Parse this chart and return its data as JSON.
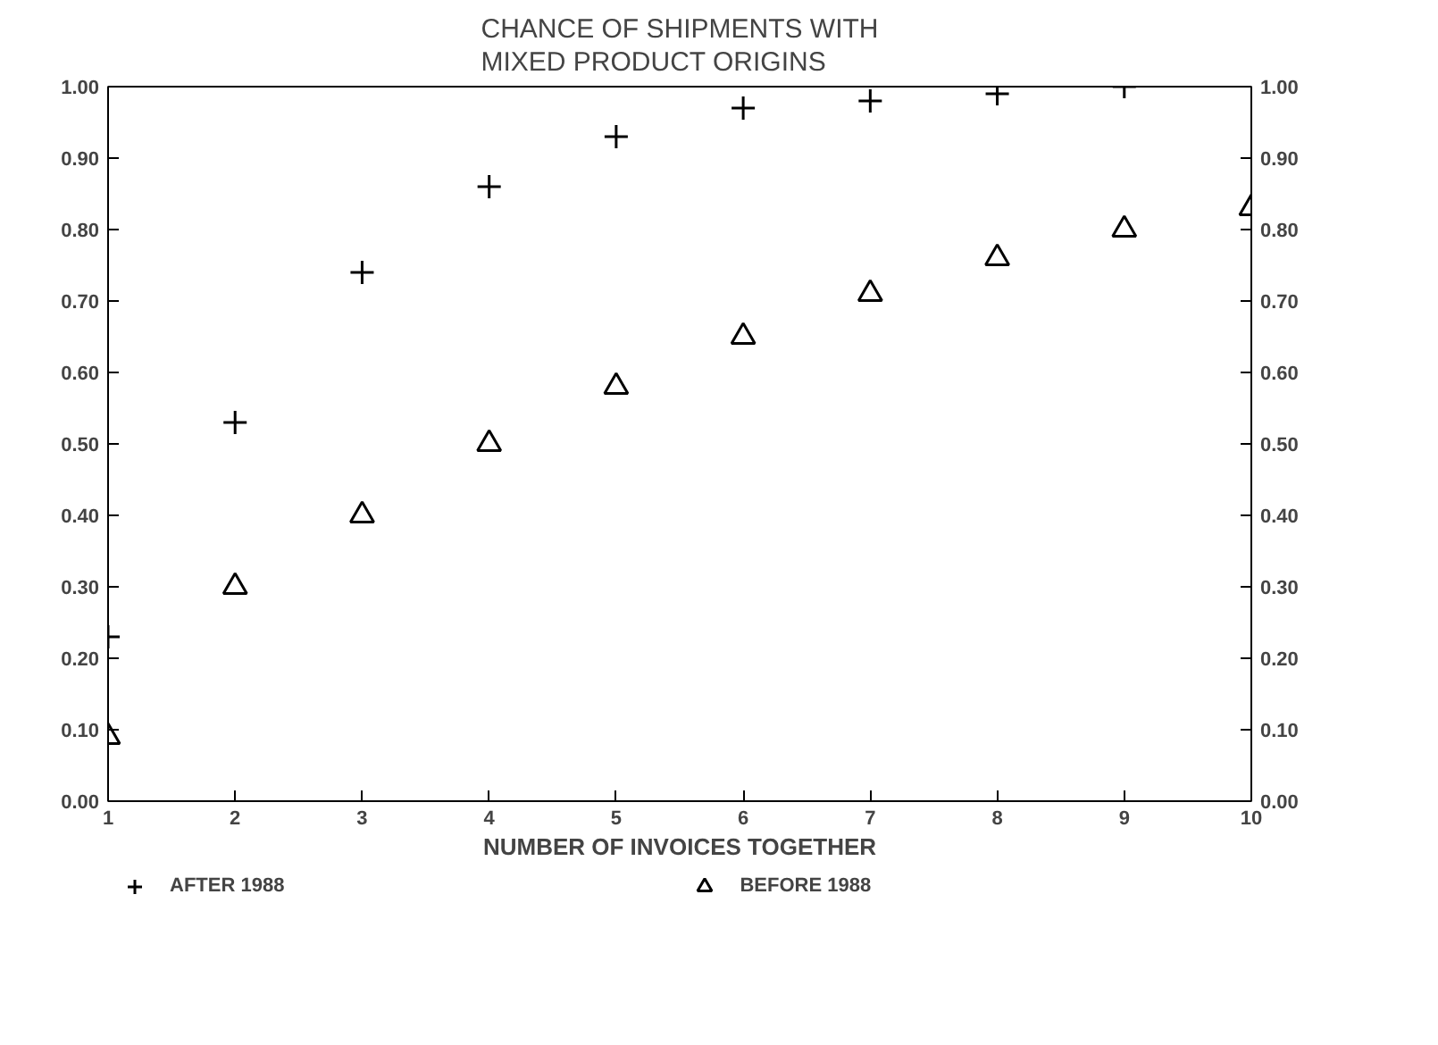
{
  "chart_data": {
    "type": "scatter",
    "title": "CHANCE OF SHIPMENTS WITH\nMIXED PRODUCT ORIGINS",
    "xlabel": "NUMBER OF INVOICES TOGETHER",
    "x": [
      1,
      2,
      3,
      4,
      5,
      6,
      7,
      8,
      9,
      10
    ],
    "xlim": [
      1,
      10
    ],
    "xticks": [
      1,
      2,
      3,
      4,
      5,
      6,
      7,
      8,
      9,
      10
    ],
    "ylim": [
      0,
      1
    ],
    "yticks": [
      {
        "value": 0,
        "label": "0.00"
      },
      {
        "value": 0.1,
        "label": "0.10"
      },
      {
        "value": 0.2,
        "label": "0.20"
      },
      {
        "value": 0.3,
        "label": "0.30"
      },
      {
        "value": 0.4,
        "label": "0.40"
      },
      {
        "value": 0.5,
        "label": "0.50"
      },
      {
        "value": 0.6,
        "label": "0.60"
      },
      {
        "value": 0.7,
        "label": "0.70"
      },
      {
        "value": 0.8,
        "label": "0.80"
      },
      {
        "value": 0.9,
        "label": "0.90"
      },
      {
        "value": 1,
        "label": "1.00"
      }
    ],
    "y2lim": [
      0,
      1
    ],
    "y2ticks": [
      {
        "value": 0,
        "label": "0.00"
      },
      {
        "value": 0.1,
        "label": "0.10"
      },
      {
        "value": 0.2,
        "label": "0.20"
      },
      {
        "value": 0.3,
        "label": "0.30"
      },
      {
        "value": 0.4,
        "label": "0.40"
      },
      {
        "value": 0.5,
        "label": "0.50"
      },
      {
        "value": 0.6,
        "label": "0.60"
      },
      {
        "value": 0.7,
        "label": "0.70"
      },
      {
        "value": 0.8,
        "label": "0.80"
      },
      {
        "value": 0.9,
        "label": "0.90"
      },
      {
        "value": 1,
        "label": "1.00"
      }
    ],
    "grid": false,
    "legend": "bottom",
    "series": [
      {
        "name": "AFTER 1988",
        "color": "#000000",
        "marker": "cross",
        "x": [
          1,
          2,
          3,
          4,
          5,
          6,
          7,
          8,
          9
        ],
        "values": [
          0.23,
          0.53,
          0.74,
          0.86,
          0.93,
          0.97,
          0.98,
          0.99,
          1.0
        ]
      },
      {
        "name": "BEFORE 1988",
        "color": "#000000",
        "marker": "triangle",
        "values": [
          0.09,
          0.3,
          0.4,
          0.5,
          0.58,
          0.65,
          0.71,
          0.76,
          0.8,
          0.83
        ]
      }
    ]
  }
}
